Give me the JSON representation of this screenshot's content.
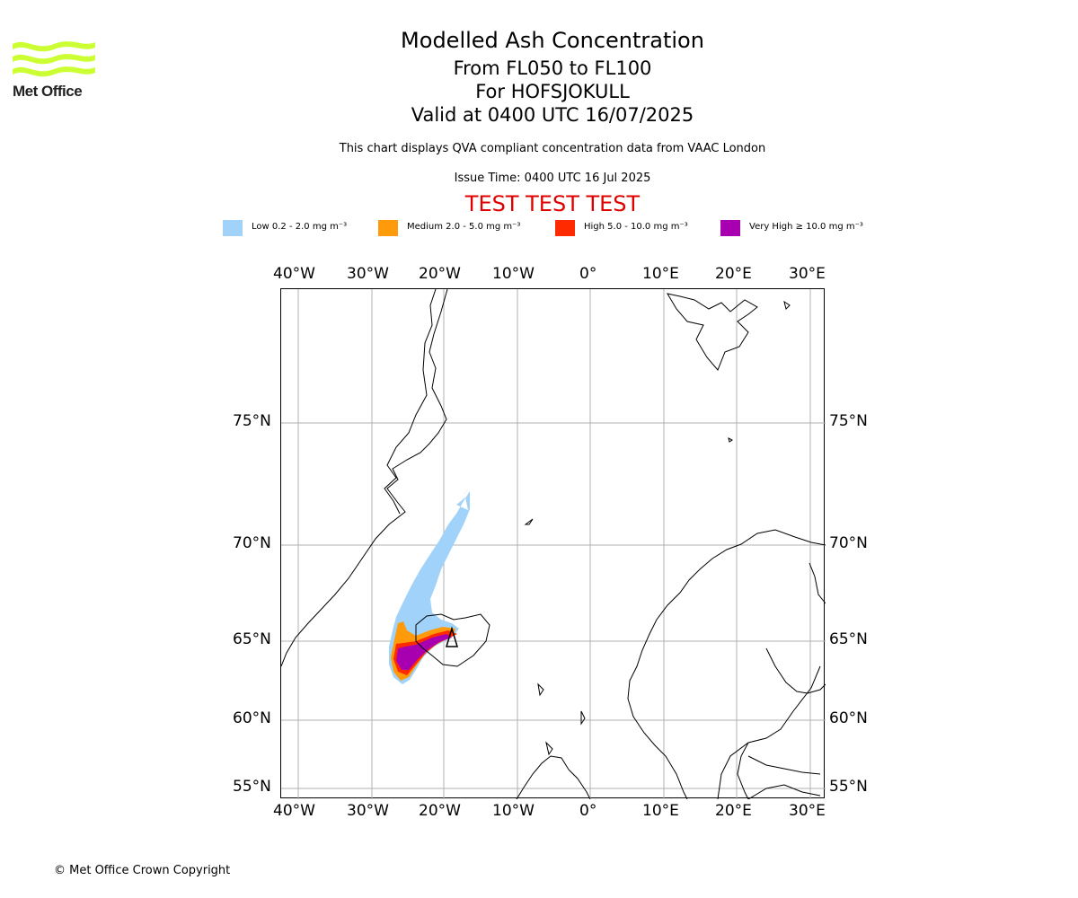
{
  "logo": {
    "text": "Met Office",
    "color": "#ccff33"
  },
  "header": {
    "title": "Modelled Ash Concentration",
    "levels": "From FL050 to FL100",
    "volcano": "For HOFSJOKULL",
    "valid": "Valid at 0400 UTC 16/07/2025",
    "note": "This chart displays QVA compliant concentration data from VAAC London",
    "issue": "Issue Time: 0400 UTC 16 Jul 2025",
    "test_banner": "TEST TEST TEST"
  },
  "legend": [
    {
      "label": "Low 0.2 - 2.0 mg m⁻³",
      "color": "#a0d2fa"
    },
    {
      "label": "Medium 2.0 - 5.0 mg m⁻³",
      "color": "#ff9a0a"
    },
    {
      "label": "High 5.0 - 10.0 mg m⁻³",
      "color": "#ff2a00"
    },
    {
      "label": "Very High  ≥  10.0 mg m⁻³",
      "color": "#a800b0"
    }
  ],
  "map": {
    "lon_labels": [
      "40°W",
      "30°W",
      "20°W",
      "10°W",
      "0°",
      "10°E",
      "20°E",
      "30°E"
    ],
    "lat_labels": [
      "75°N",
      "70°N",
      "65°N",
      "60°N",
      "55°N"
    ],
    "grid_color": "#b0b0b0"
  },
  "footer": {
    "copyright": "© Met Office Crown Copyright"
  }
}
